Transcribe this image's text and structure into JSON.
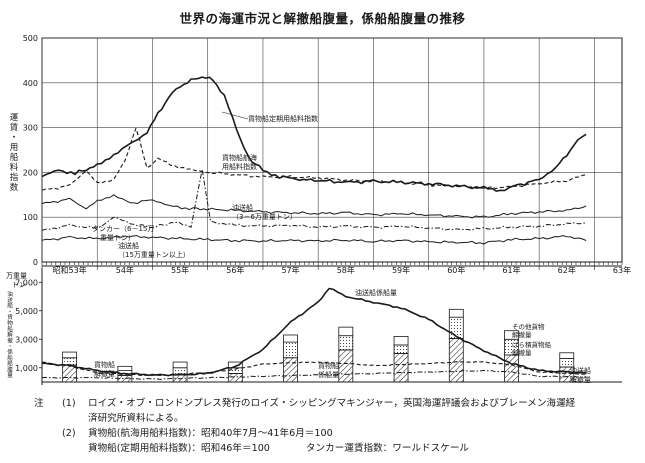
{
  "title": "世界の海運市況と解撤船腹量，係船船腹量の推移",
  "chart_data": [
    {
      "type": "line",
      "ylabel": "運賃・用船料指数",
      "ylim": [
        0,
        500
      ],
      "yticks": [
        "0",
        "100",
        "200",
        "300",
        "400",
        "500"
      ],
      "xlim": [
        1978.0,
        1988.5
      ],
      "x_tick_labels": [
        "昭和53年",
        "54年",
        "55年",
        "56年",
        "57年",
        "58年",
        "59年",
        "60年",
        "61年",
        "62年",
        "63年"
      ],
      "grid": true,
      "series": [
        {
          "name": "貨物船定期用船料指数",
          "style": "solid-bold",
          "points": [
            [
              1978.0,
              190
            ],
            [
              1978.3,
              205
            ],
            [
              1978.6,
              198
            ],
            [
              1979.0,
              215
            ],
            [
              1979.3,
              240
            ],
            [
              1979.6,
              262
            ],
            [
              1979.9,
              290
            ],
            [
              1980.1,
              330
            ],
            [
              1980.3,
              370
            ],
            [
              1980.5,
              392
            ],
            [
              1980.7,
              405
            ],
            [
              1980.9,
              415
            ],
            [
              1981.1,
              405
            ],
            [
              1981.3,
              372
            ],
            [
              1981.45,
              320
            ],
            [
              1981.6,
              268
            ],
            [
              1981.8,
              225
            ],
            [
              1982.0,
              205
            ],
            [
              1982.3,
              190
            ],
            [
              1982.6,
              185
            ],
            [
              1983.0,
              182
            ],
            [
              1983.5,
              178
            ],
            [
              1984.0,
              180
            ],
            [
              1984.5,
              178
            ],
            [
              1985.0,
              175
            ],
            [
              1985.5,
              170
            ],
            [
              1986.0,
              165
            ],
            [
              1986.3,
              160
            ],
            [
              1986.6,
              170
            ],
            [
              1987.0,
              185
            ],
            [
              1987.3,
              210
            ],
            [
              1987.5,
              240
            ],
            [
              1987.7,
              270
            ],
            [
              1987.85,
              285
            ]
          ]
        },
        {
          "name": "貨物船航海用船料指数",
          "style": "dashed",
          "points": [
            [
              1978.0,
              160
            ],
            [
              1978.5,
              170
            ],
            [
              1978.8,
              205
            ],
            [
              1979.0,
              175
            ],
            [
              1979.3,
              185
            ],
            [
              1979.5,
              225
            ],
            [
              1979.7,
              300
            ],
            [
              1979.9,
              210
            ],
            [
              1980.1,
              230
            ],
            [
              1980.4,
              215
            ],
            [
              1980.7,
              205
            ],
            [
              1981.0,
              200
            ],
            [
              1981.5,
              195
            ],
            [
              1982.0,
              190
            ],
            [
              1982.5,
              190
            ],
            [
              1983.0,
              188
            ],
            [
              1983.5,
              183
            ],
            [
              1984.0,
              180
            ],
            [
              1984.5,
              178
            ],
            [
              1985.0,
              172
            ],
            [
              1985.5,
              170
            ],
            [
              1986.0,
              165
            ],
            [
              1986.5,
              168
            ],
            [
              1987.0,
              175
            ],
            [
              1987.5,
              182
            ],
            [
              1987.85,
              195
            ]
          ]
        },
        {
          "name": "油送船（3～6万重量トン）",
          "style": "solid-thin",
          "points": [
            [
              1978.0,
              130
            ],
            [
              1978.5,
              140
            ],
            [
              1978.8,
              120
            ],
            [
              1979.0,
              135
            ],
            [
              1979.3,
              150
            ],
            [
              1979.6,
              130
            ],
            [
              1980.0,
              140
            ],
            [
              1980.3,
              125
            ],
            [
              1980.6,
              120
            ],
            [
              1981.0,
              118
            ],
            [
              1981.5,
              115
            ],
            [
              1982.0,
              112
            ],
            [
              1982.5,
              110
            ],
            [
              1983.0,
              108
            ],
            [
              1983.5,
              110
            ],
            [
              1984.0,
              105
            ],
            [
              1984.5,
              108
            ],
            [
              1985.0,
              105
            ],
            [
              1985.5,
              102
            ],
            [
              1986.0,
              100
            ],
            [
              1986.5,
              108
            ],
            [
              1987.0,
              112
            ],
            [
              1987.5,
              115
            ],
            [
              1987.85,
              125
            ]
          ]
        },
        {
          "name": "タンカー（6～15万重量トン）",
          "style": "dash-dot",
          "points": [
            [
              1978.0,
              70
            ],
            [
              1978.5,
              82
            ],
            [
              1979.0,
              75
            ],
            [
              1979.3,
              100
            ],
            [
              1979.6,
              85
            ],
            [
              1980.0,
              78
            ],
            [
              1980.4,
              88
            ],
            [
              1980.7,
              80
            ],
            [
              1980.9,
              205
            ],
            [
              1981.05,
              90
            ],
            [
              1981.5,
              82
            ],
            [
              1982.0,
              80
            ],
            [
              1982.5,
              82
            ],
            [
              1983.0,
              78
            ],
            [
              1983.5,
              80
            ],
            [
              1984.0,
              77
            ],
            [
              1984.5,
              80
            ],
            [
              1985.0,
              76
            ],
            [
              1985.5,
              72
            ],
            [
              1986.0,
              74
            ],
            [
              1986.5,
              78
            ],
            [
              1987.0,
              80
            ],
            [
              1987.5,
              85
            ],
            [
              1987.85,
              88
            ]
          ]
        },
        {
          "name": "油送船（15万重量トン以上）",
          "style": "solid-thin",
          "points": [
            [
              1978.0,
              48
            ],
            [
              1978.5,
              55
            ],
            [
              1979.0,
              52
            ],
            [
              1979.5,
              58
            ],
            [
              1980.0,
              55
            ],
            [
              1980.5,
              52
            ],
            [
              1981.0,
              50
            ],
            [
              1981.5,
              48
            ],
            [
              1982.0,
              47
            ],
            [
              1982.5,
              48
            ],
            [
              1983.0,
              47
            ],
            [
              1983.5,
              49
            ],
            [
              1984.0,
              46
            ],
            [
              1984.5,
              48
            ],
            [
              1985.0,
              45
            ],
            [
              1985.5,
              44
            ],
            [
              1986.0,
              43
            ],
            [
              1986.5,
              50
            ],
            [
              1987.0,
              52
            ],
            [
              1987.5,
              58
            ],
            [
              1987.85,
              48
            ]
          ]
        }
      ]
    },
    {
      "type": "bar+line",
      "ylabel": "油送船・貨物船解撤・係船船腹量",
      "yunit": "万重量トン",
      "ylim": [
        0,
        8000
      ],
      "yticks": [
        "1,000",
        "3,000",
        "5,000",
        "7,000"
      ],
      "series": [
        {
          "name": "油送船係船量",
          "style": "solid-bold",
          "points": [
            [
              1978.0,
              1300
            ],
            [
              1978.5,
              1150
            ],
            [
              1979.0,
              800
            ],
            [
              1979.5,
              600
            ],
            [
              1980.0,
              500
            ],
            [
              1980.5,
              500
            ],
            [
              1981.0,
              600
            ],
            [
              1981.5,
              1100
            ],
            [
              1982.0,
              2300
            ],
            [
              1982.5,
              4200
            ],
            [
              1983.0,
              5600
            ],
            [
              1983.2,
              6600
            ],
            [
              1983.5,
              6000
            ],
            [
              1984.0,
              5600
            ],
            [
              1984.5,
              5200
            ],
            [
              1985.0,
              4400
            ],
            [
              1985.5,
              3200
            ],
            [
              1986.0,
              2200
            ],
            [
              1986.5,
              1300
            ],
            [
              1987.0,
              800
            ],
            [
              1987.5,
              700
            ],
            [
              1987.85,
              650
            ]
          ]
        },
        {
          "name": "貨物船係船量",
          "style": "dashed",
          "points": [
            [
              1978.0,
              1400
            ],
            [
              1978.5,
              1100
            ],
            [
              1979.0,
              650
            ],
            [
              1980.0,
              450
            ],
            [
              1981.0,
              650
            ],
            [
              1981.5,
              900
            ],
            [
              1982.0,
              1250
            ],
            [
              1982.5,
              1350
            ],
            [
              1983.0,
              1400
            ],
            [
              1983.5,
              1300
            ],
            [
              1984.0,
              1150
            ],
            [
              1985.0,
              1300
            ],
            [
              1985.5,
              1400
            ],
            [
              1986.0,
              1400
            ],
            [
              1986.5,
              1200
            ],
            [
              1987.0,
              700
            ],
            [
              1987.85,
              550
            ]
          ]
        },
        {
          "name": "油送船解撤量",
          "style": "dash-dot",
          "points": [
            [
              1978.0,
              300
            ],
            [
              1979.0,
              300
            ],
            [
              1980.0,
              200
            ],
            [
              1981.0,
              300
            ],
            [
              1982.0,
              400
            ],
            [
              1983.0,
              500
            ],
            [
              1984.0,
              600
            ],
            [
              1985.0,
              700
            ],
            [
              1986.0,
              800
            ],
            [
              1986.5,
              700
            ],
            [
              1987.0,
              400
            ],
            [
              1987.85,
              350
            ]
          ]
        }
      ],
      "bars": {
        "categories": [
          "昭和53年",
          "54年",
          "55年",
          "56年",
          "57年",
          "58年",
          "59年",
          "60年",
          "61年",
          "62年"
        ],
        "stacked": [
          {
            "name": "油送船",
            "values": [
              1200,
              450,
              500,
              600,
              1700,
              2250,
              2000,
              3050,
              1900,
              1050
            ]
          },
          {
            "name": "ばら積貨物船",
            "values": [
              500,
              350,
              500,
              400,
              1100,
              1000,
              600,
              1500,
              1100,
              600
            ]
          },
          {
            "name": "その他貨物船",
            "values": [
              400,
              300,
              400,
              400,
              500,
              600,
              600,
              550,
              600,
              400
            ]
          }
        ]
      }
    }
  ],
  "labels": {
    "kamotsu_teiki": "貨物船定期用船料指数",
    "kamotsu_kokai_1": "貨物船航海",
    "kamotsu_kokai_2": "用船料指数",
    "yusosen_3_6_1": "油送船",
    "yusosen_3_6_2": "（3－6万重量トン）",
    "tanker_1": "タンカー（6－15万",
    "tanker_2": "重量トン）",
    "yusosen_15_1": "油送船",
    "yusosen_15_2": "（15万重量トン以上）",
    "yusosen_keisen": "油送船係船量",
    "kamotsu_keisen_1": "貨物船",
    "kamotsu_keisen_2": "係船量",
    "kamotsu_kaitetsu_1": "貨物船",
    "kamotsu_kaitetsu_2": "解撤量",
    "yusosen_kaitetsu_1": "油送船",
    "yusosen_kaitetsu_2": "解撤量",
    "legend_sonota_1": "その他貨物",
    "legend_sonota_2": "解撤量",
    "legend_bara_1": "ばら積貨物船",
    "legend_bara_2": "解撤量",
    "top_ylabel_chars": [
      "運",
      "賃",
      "・",
      "用",
      "船",
      "料",
      "指",
      "数"
    ],
    "bottom_ylabel_chars": [
      "油",
      "送",
      "船",
      "・",
      "貨",
      "物",
      "船",
      "解",
      "撤",
      "・",
      "係",
      "船",
      "船",
      "腹",
      "量"
    ],
    "unit_line1": "万重量",
    "unit_line2": "トン"
  },
  "notes": {
    "head": "注",
    "n1_num": "(1)",
    "n1_text": "ロイズ・オブ・ロンドンプレス発行のロイズ・シッピングマキンジャー，英国海運評議会およびブレーメン海運経",
    "n1_cont": "済研究所資料による。",
    "n2_num": "(2)",
    "n2_a": "貨物船(航海用船料指数)：昭和40年7月～41年6月＝100",
    "n2_b": "貨物船(定期用船料指数)：昭和46年＝100",
    "n2_c": "タンカー運賃指数：ワールドスケール"
  }
}
